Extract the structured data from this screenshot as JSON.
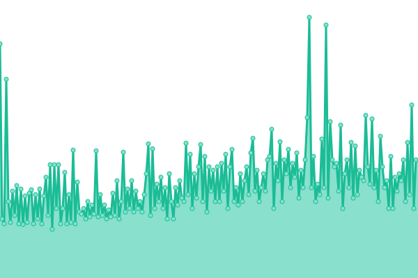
{
  "chart_data": {
    "type": "area",
    "title": "",
    "xlabel": "",
    "ylabel": "",
    "grid": false,
    "legend": "none",
    "ylim": [
      0,
      400
    ],
    "colors": {
      "line": "#1bbc96",
      "fill": "#88e0cd",
      "point_fill": "#80e3cb",
      "point_stroke": "#1bbc96"
    },
    "values": [
      337,
      85,
      78,
      286,
      110,
      80,
      125,
      90,
      133,
      78,
      128,
      77,
      118,
      80,
      122,
      127,
      78,
      120,
      85,
      128,
      78,
      118,
      145,
      90,
      163,
      70,
      163,
      100,
      163,
      78,
      100,
      152,
      78,
      120,
      80,
      184,
      78,
      138,
      95,
      92,
      100,
      85,
      110,
      88,
      105,
      92,
      183,
      88,
      120,
      90,
      105,
      85,
      98,
      88,
      122,
      90,
      140,
      85,
      110,
      181,
      95,
      128,
      100,
      140,
      95,
      125,
      100,
      110,
      95,
      120,
      150,
      193,
      90,
      186,
      100,
      135,
      110,
      145,
      100,
      130,
      85,
      150,
      110,
      85,
      130,
      105,
      140,
      115,
      110,
      194,
      120,
      178,
      100,
      150,
      115,
      160,
      192,
      110,
      175,
      95,
      160,
      125,
      155,
      110,
      160,
      110,
      165,
      125,
      178,
      100,
      160,
      185,
      110,
      130,
      105,
      150,
      110,
      140,
      160,
      120,
      180,
      201,
      125,
      155,
      110,
      130,
      150,
      125,
      170,
      175,
      214,
      100,
      165,
      140,
      196,
      110,
      170,
      150,
      185,
      130,
      165,
      145,
      180,
      115,
      155,
      130,
      170,
      231,
      375,
      130,
      175,
      110,
      135,
      120,
      200,
      130,
      364,
      115,
      225,
      170,
      160,
      165,
      125,
      220,
      100,
      150,
      170,
      130,
      195,
      115,
      190,
      120,
      155,
      145,
      140,
      234,
      160,
      135,
      229,
      130,
      155,
      110,
      204,
      160,
      130,
      140,
      100,
      175,
      100,
      145,
      125,
      150,
      140,
      170,
      110,
      195,
      120,
      249,
      100,
      170
    ]
  }
}
